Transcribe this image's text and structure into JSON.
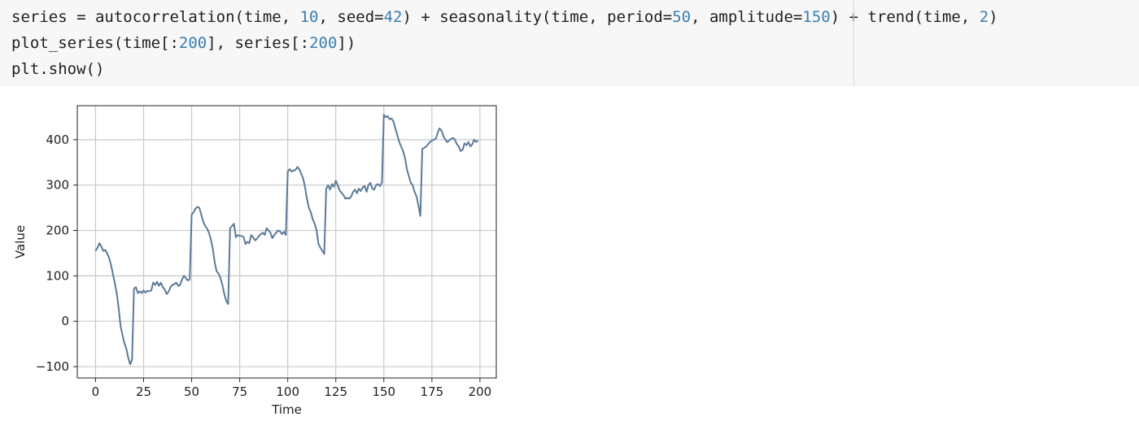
{
  "code_cell": {
    "lines": [
      [
        {
          "t": "series = autocorrelation(time, ",
          "c": "kw"
        },
        {
          "t": "10",
          "c": "num"
        },
        {
          "t": ", seed=",
          "c": "kw"
        },
        {
          "t": "42",
          "c": "num"
        },
        {
          "t": ") + seasonality(time, period=",
          "c": "kw"
        },
        {
          "t": "50",
          "c": "num"
        },
        {
          "t": ", amplitude=",
          "c": "kw"
        },
        {
          "t": "150",
          "c": "num"
        },
        {
          "t": ") + trend(time, ",
          "c": "kw"
        },
        {
          "t": "2",
          "c": "num"
        },
        {
          "t": ")",
          "c": "kw"
        }
      ],
      [
        {
          "t": "plot_series(time[:",
          "c": "kw"
        },
        {
          "t": "200",
          "c": "num"
        },
        {
          "t": "], series[:",
          "c": "kw"
        },
        {
          "t": "200",
          "c": "num"
        },
        {
          "t": "])",
          "c": "kw"
        }
      ],
      [
        {
          "t": "plt.show()",
          "c": "kw"
        }
      ]
    ]
  },
  "colors": {
    "line": "#5c7a99",
    "grid": "#c8c8c8",
    "axis": "#222222",
    "code_number": "#3a7fb3"
  },
  "chart_data": {
    "type": "line",
    "title": "",
    "xlabel": "Time",
    "ylabel": "Value",
    "xlim": [
      -9.5,
      208.5
    ],
    "ylim": [
      -125,
      475
    ],
    "xticks": [
      0,
      25,
      50,
      75,
      100,
      125,
      150,
      175,
      200
    ],
    "yticks": [
      -100,
      0,
      100,
      200,
      300,
      400
    ],
    "grid": true,
    "legend": "none",
    "x": [
      0,
      1,
      2,
      3,
      4,
      5,
      6,
      7,
      8,
      9,
      10,
      11,
      12,
      13,
      14,
      15,
      16,
      17,
      18,
      19,
      20,
      21,
      22,
      23,
      24,
      25,
      26,
      27,
      28,
      29,
      30,
      31,
      32,
      33,
      34,
      35,
      36,
      37,
      38,
      39,
      40,
      41,
      42,
      43,
      44,
      45,
      46,
      47,
      48,
      49,
      50,
      51,
      52,
      53,
      54,
      55,
      56,
      57,
      58,
      59,
      60,
      61,
      62,
      63,
      64,
      65,
      66,
      67,
      68,
      69,
      70,
      71,
      72,
      73,
      74,
      75,
      76,
      77,
      78,
      79,
      80,
      81,
      82,
      83,
      84,
      85,
      86,
      87,
      88,
      89,
      90,
      91,
      92,
      93,
      94,
      95,
      96,
      97,
      98,
      99,
      100,
      101,
      102,
      103,
      104,
      105,
      106,
      107,
      108,
      109,
      110,
      111,
      112,
      113,
      114,
      115,
      116,
      117,
      118,
      119,
      120,
      121,
      122,
      123,
      124,
      125,
      126,
      127,
      128,
      129,
      130,
      131,
      132,
      133,
      134,
      135,
      136,
      137,
      138,
      139,
      140,
      141,
      142,
      143,
      144,
      145,
      146,
      147,
      148,
      149,
      150,
      151,
      152,
      153,
      154,
      155,
      156,
      157,
      158,
      159,
      160,
      161,
      162,
      163,
      164,
      165,
      166,
      167,
      168,
      169,
      170,
      171,
      172,
      173,
      174,
      175,
      176,
      177,
      178,
      179,
      180,
      181,
      182,
      183,
      184,
      185,
      186,
      187,
      188,
      189,
      190,
      191,
      192,
      193,
      194,
      195,
      196,
      197,
      198,
      199
    ],
    "series": [
      {
        "values": [
          155,
          162,
          172,
          165,
          155,
          157,
          150,
          140,
          125,
          105,
          85,
          62,
          30,
          -10,
          -30,
          -48,
          -60,
          -80,
          -95,
          -85,
          72,
          75,
          62,
          66,
          62,
          68,
          63,
          67,
          66,
          68,
          85,
          80,
          87,
          78,
          85,
          75,
          70,
          60,
          65,
          75,
          80,
          82,
          85,
          78,
          80,
          92,
          100,
          95,
          90,
          92,
          235,
          240,
          248,
          252,
          250,
          235,
          220,
          210,
          205,
          195,
          180,
          160,
          130,
          110,
          105,
          95,
          80,
          60,
          45,
          38,
          205,
          210,
          215,
          185,
          190,
          188,
          188,
          186,
          170,
          175,
          172,
          190,
          185,
          178,
          182,
          188,
          192,
          195,
          190,
          205,
          200,
          195,
          183,
          190,
          195,
          200,
          198,
          192,
          197,
          190,
          330,
          335,
          330,
          332,
          333,
          340,
          335,
          325,
          315,
          295,
          270,
          250,
          240,
          225,
          215,
          200,
          170,
          162,
          155,
          148,
          292,
          300,
          290,
          302,
          296,
          310,
          300,
          288,
          283,
          278,
          270,
          272,
          270,
          275,
          285,
          290,
          282,
          292,
          287,
          295,
          298,
          285,
          300,
          305,
          292,
          290,
          300,
          302,
          298,
          305,
          455,
          450,
          452,
          445,
          447,
          440,
          425,
          410,
          395,
          385,
          375,
          360,
          335,
          320,
          305,
          300,
          285,
          275,
          255,
          232,
          380,
          382,
          385,
          390,
          395,
          398,
          400,
          402,
          415,
          425,
          420,
          408,
          400,
          395,
          398,
          402,
          404,
          400,
          390,
          385,
          375,
          378,
          392,
          388,
          395,
          385,
          390,
          400,
          395,
          398
        ]
      }
    ]
  }
}
